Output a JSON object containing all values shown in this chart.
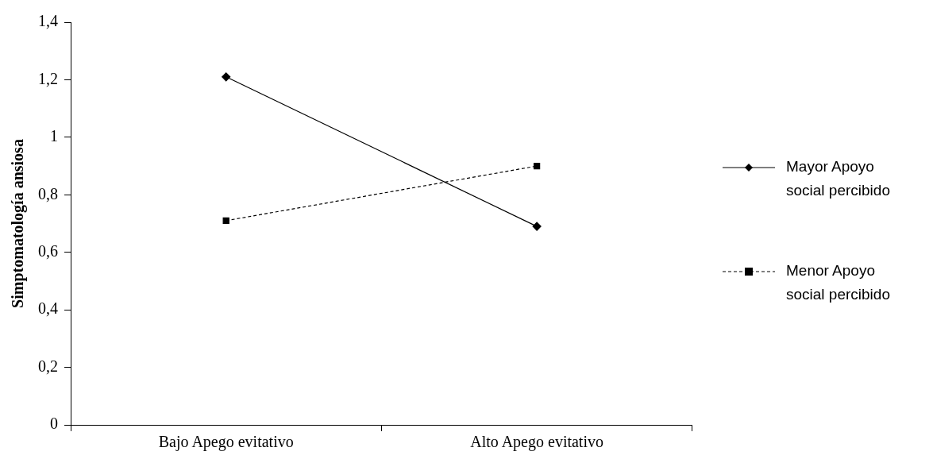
{
  "chart_data": {
    "type": "line",
    "ylabel": "Simptomatología ansiosa",
    "categories": [
      "Bajo Apego evitativo",
      "Alto Apego evitativo"
    ],
    "series": [
      {
        "name": "Mayor Apoyo social percibido",
        "color": "#000000",
        "values": [
          1.21,
          0.69
        ],
        "marker": "diamond",
        "line_style": "solid"
      },
      {
        "name": "Menor Apoyo social percibido",
        "color": "#000000",
        "values": [
          0.71,
          0.9
        ],
        "marker": "square",
        "line_style": "dashed"
      }
    ],
    "ylim": [
      0,
      1.4
    ],
    "yticks": [
      0,
      {
        "value": 0.2,
        "label": "0,2"
      },
      {
        "value": 0.4,
        "label": "0,4"
      },
      {
        "value": 0.6,
        "label": "0,6"
      },
      {
        "value": 0.8,
        "label": "0,8"
      },
      1,
      {
        "value": 1.2,
        "label": "1,2"
      },
      {
        "value": 1.4,
        "label": "1,4"
      }
    ],
    "grid": false,
    "legend": "right"
  }
}
